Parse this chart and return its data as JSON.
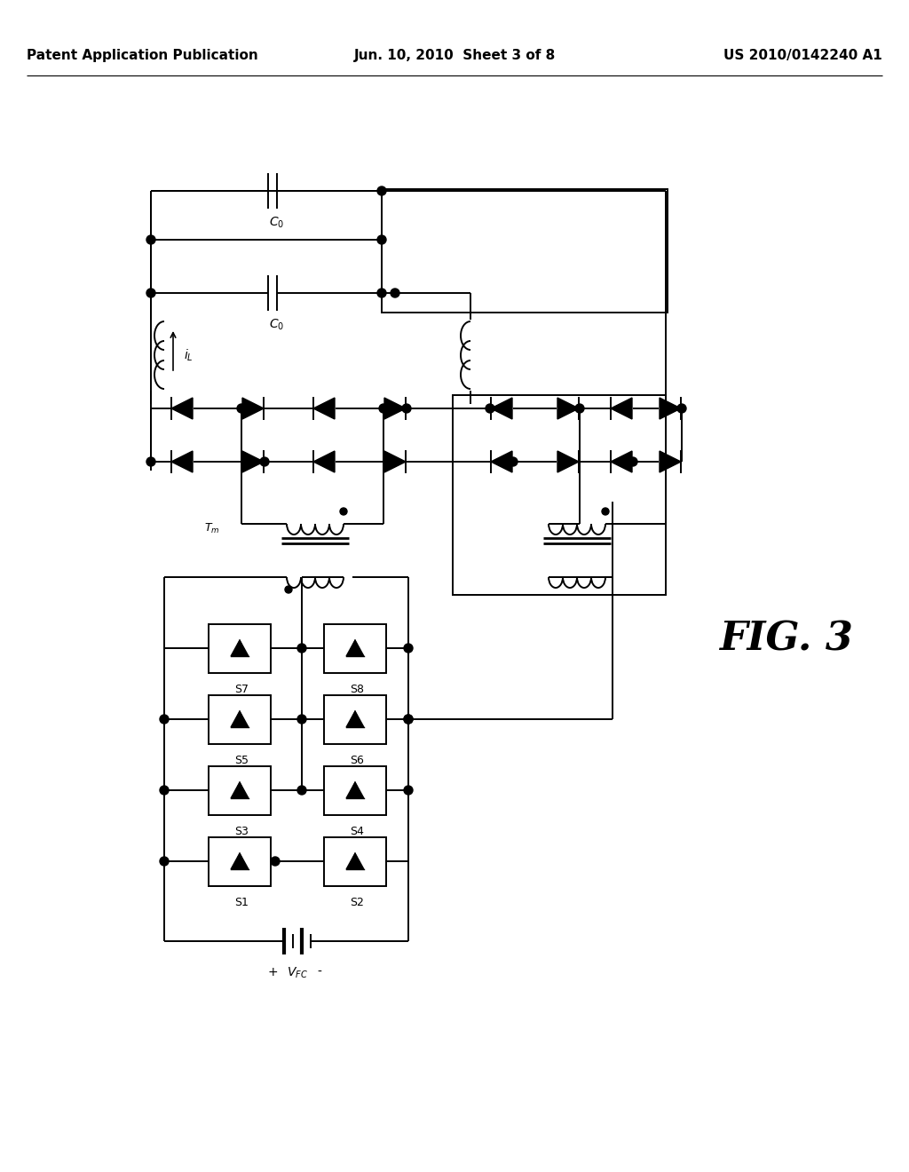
{
  "bg_color": "#ffffff",
  "line_color": "#000000",
  "header_left": "Patent Application Publication",
  "header_mid": "Jun. 10, 2010  Sheet 3 of 8",
  "header_right": "US 2010/0142240 A1",
  "fig_label": "FIG. 3",
  "title_fontsize": 11
}
